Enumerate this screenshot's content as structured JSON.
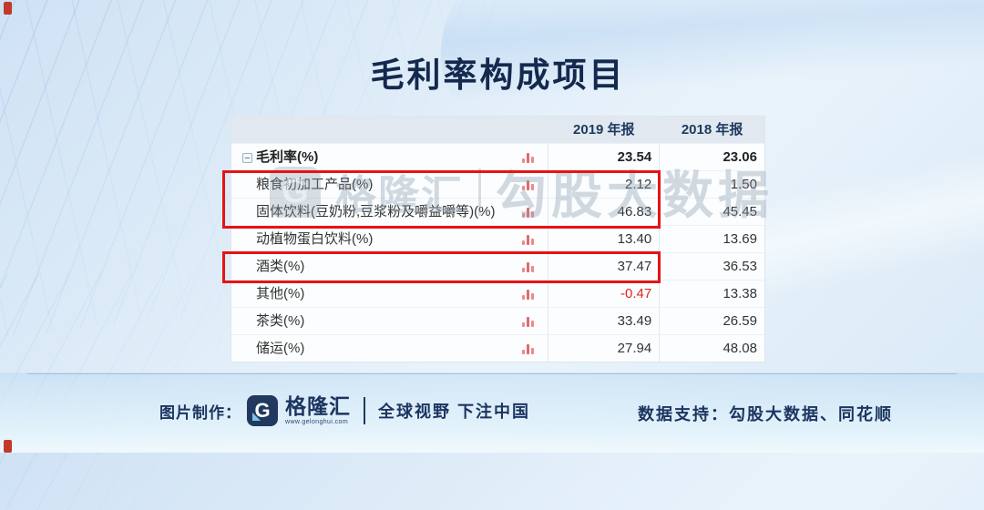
{
  "page": {
    "title": "毛利率构成项目"
  },
  "watermark": {
    "brand_initial": "G",
    "brand": "格隆汇",
    "text": "勾股大数据"
  },
  "table": {
    "col_2019": "2019 年报",
    "col_2018": "2018 年报",
    "rows": [
      {
        "label": "毛利率(%)",
        "y2019": "23.54",
        "y2018": "23.06"
      },
      {
        "label": "粮食初加工产品(%)",
        "y2019": "2.12",
        "y2018": "1.50"
      },
      {
        "label": "固体饮料(豆奶粉,豆浆粉及嚼益嚼等)(%)",
        "y2019": "46.83",
        "y2018": "45.45"
      },
      {
        "label": "动植物蛋白饮料(%)",
        "y2019": "13.40",
        "y2018": "13.69"
      },
      {
        "label": "酒类(%)",
        "y2019": "37.47",
        "y2018": "36.53"
      },
      {
        "label": "其他(%)",
        "y2019": "-0.47",
        "y2018": "13.38"
      },
      {
        "label": "茶类(%)",
        "y2019": "33.49",
        "y2018": "26.59"
      },
      {
        "label": "储运(%)",
        "y2019": "27.94",
        "y2018": "48.08"
      }
    ]
  },
  "icons": {
    "row_chart_icon": "bar-chart",
    "expand_icon": "collapse-minus-box"
  },
  "footer": {
    "made_by_label": "图片制作：",
    "brand_initial": "G",
    "brand_name": "格隆汇",
    "brand_url": "www.gelonghui.com",
    "slogan": "全球视野 下注中国",
    "data_support": "数据支持：勾股大数据、同花顺"
  },
  "colors": {
    "accent_navy": "#1c3560",
    "highlight_box_red": "#e41414",
    "negative_value_red": "#e0261c",
    "header_bg": "#e1e8f0",
    "background_blue": "#d8e9f6"
  },
  "chart_data": {
    "type": "table",
    "title": "毛利率构成项目",
    "categories": [
      "毛利率(%)",
      "粮食初加工产品(%)",
      "固体饮料(豆奶粉,豆浆粉及嚼益嚼等)(%)",
      "动植物蛋白饮料(%)",
      "酒类(%)",
      "其他(%)",
      "茶类(%)",
      "储运(%)"
    ],
    "series": [
      {
        "name": "2019 年报",
        "values": [
          23.54,
          2.12,
          46.83,
          13.4,
          37.47,
          -0.47,
          33.49,
          27.94
        ]
      },
      {
        "name": "2018 年报",
        "values": [
          23.06,
          1.5,
          45.45,
          13.69,
          36.53,
          13.38,
          26.59,
          48.08
        ]
      }
    ],
    "highlighted_rows": [
      "粮食初加工产品(%)",
      "固体饮料(豆奶粉,豆浆粉及嚼益嚼等)(%)",
      "酒类(%)"
    ],
    "layout": {
      "legend_position": "top",
      "grid": false
    }
  }
}
